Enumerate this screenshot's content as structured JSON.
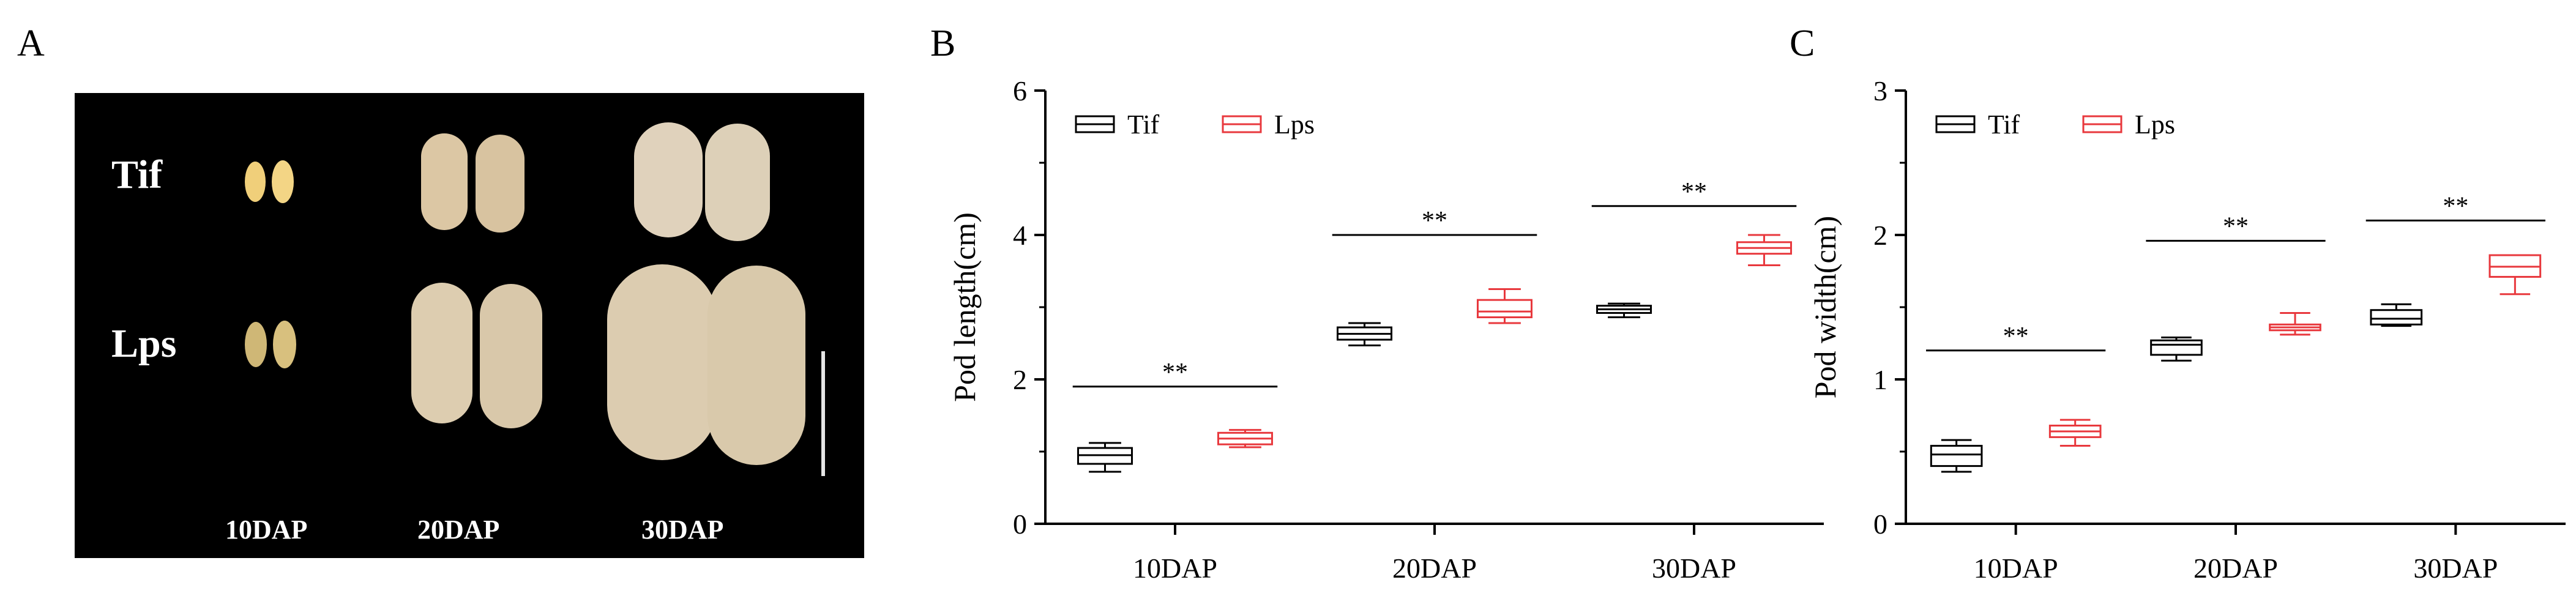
{
  "panels": {
    "a": {
      "letter": "A"
    },
    "b": {
      "letter": "B"
    },
    "c": {
      "letter": "C"
    }
  },
  "photo": {
    "row_labels": [
      "Tif",
      "Lps"
    ],
    "column_labels": [
      "10DAP",
      "20DAP",
      "30DAP"
    ],
    "background": "#000000",
    "seed_colors": {
      "Tif": "#f0cf7a",
      "Lps": "#cfb776"
    },
    "pod_color": "#d9c9aa"
  },
  "chart_data": [
    {
      "type": "box",
      "panel": "B",
      "title": "",
      "xlabel": "",
      "ylabel": "Pod length(cm)",
      "ylim": [
        0,
        6
      ],
      "yticks": [
        0,
        2,
        4,
        6
      ],
      "categories": [
        "10DAP",
        "20DAP",
        "30DAP"
      ],
      "legend": {
        "placement": "top-left"
      },
      "series": [
        {
          "name": "Tif",
          "color": "#000000",
          "boxes": [
            {
              "min": 0.72,
              "q1": 0.83,
              "median": 0.95,
              "q3": 1.05,
              "max": 1.12
            },
            {
              "min": 2.47,
              "q1": 2.55,
              "median": 2.63,
              "q3": 2.72,
              "max": 2.78
            },
            {
              "min": 2.86,
              "q1": 2.92,
              "median": 2.97,
              "q3": 3.02,
              "max": 3.05
            }
          ]
        },
        {
          "name": "Lps",
          "color": "#e8383d",
          "boxes": [
            {
              "min": 1.06,
              "q1": 1.1,
              "median": 1.18,
              "q3": 1.26,
              "max": 1.3
            },
            {
              "min": 2.78,
              "q1": 2.86,
              "median": 2.94,
              "q3": 3.1,
              "max": 3.25
            },
            {
              "min": 3.58,
              "q1": 3.74,
              "median": 3.82,
              "q3": 3.9,
              "max": 4.0
            }
          ]
        }
      ],
      "significance": [
        {
          "category": "10DAP",
          "label": "**",
          "y": 1.9
        },
        {
          "category": "20DAP",
          "label": "**",
          "y": 4.0
        },
        {
          "category": "30DAP",
          "label": "**",
          "y": 4.4
        }
      ]
    },
    {
      "type": "box",
      "panel": "C",
      "title": "",
      "xlabel": "",
      "ylabel": "Pod width(cm)",
      "ylim": [
        0,
        3
      ],
      "yticks": [
        0,
        1,
        2,
        3
      ],
      "categories": [
        "10DAP",
        "20DAP",
        "30DAP"
      ],
      "legend": {
        "placement": "top-left"
      },
      "series": [
        {
          "name": "Tif",
          "color": "#000000",
          "boxes": [
            {
              "min": 0.36,
              "q1": 0.4,
              "median": 0.48,
              "q3": 0.54,
              "max": 0.58
            },
            {
              "min": 1.13,
              "q1": 1.17,
              "median": 1.24,
              "q3": 1.27,
              "max": 1.29
            },
            {
              "min": 1.37,
              "q1": 1.38,
              "median": 1.42,
              "q3": 1.48,
              "max": 1.52
            }
          ]
        },
        {
          "name": "Lps",
          "color": "#e8383d",
          "boxes": [
            {
              "min": 0.54,
              "q1": 0.6,
              "median": 0.64,
              "q3": 0.68,
              "max": 0.72
            },
            {
              "min": 1.31,
              "q1": 1.34,
              "median": 1.36,
              "q3": 1.38,
              "max": 1.46
            },
            {
              "min": 1.59,
              "q1": 1.71,
              "median": 1.78,
              "q3": 1.86,
              "max": 1.86
            }
          ]
        }
      ],
      "significance": [
        {
          "category": "10DAP",
          "label": "**",
          "y": 1.2
        },
        {
          "category": "20DAP",
          "label": "**",
          "y": 1.96
        },
        {
          "category": "30DAP",
          "label": "**",
          "y": 2.1
        }
      ]
    }
  ]
}
